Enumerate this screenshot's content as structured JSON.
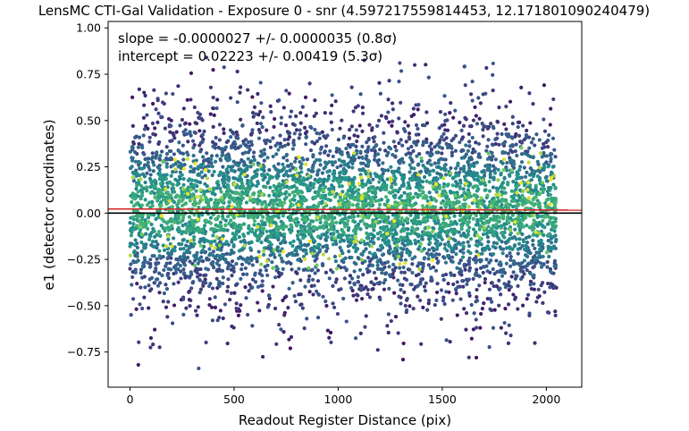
{
  "chart_data": {
    "type": "scatter",
    "title": "LensMC CTI-Gal Validation - Exposure 0 - snr (4.597217559814453, 12.171801090240479)",
    "xlabel": "Readout Register Distance (pix)",
    "ylabel": "e1 (detector coordinates)",
    "xlim": [
      -105,
      2170
    ],
    "ylim": [
      -0.94,
      1.035
    ],
    "xticks": [
      0,
      500,
      1000,
      1500,
      2000
    ],
    "xtick_labels": [
      "0",
      "500",
      "1000",
      "1500",
      "2000"
    ],
    "yticks": [
      -0.75,
      -0.5,
      -0.25,
      0.0,
      0.25,
      0.5,
      0.75,
      1.0
    ],
    "ytick_labels": [
      "−0.75",
      "−0.50",
      "−0.25",
      "0.00",
      "0.25",
      "0.50",
      "0.75",
      "1.00"
    ],
    "grid": false,
    "annotations": [
      {
        "text": "slope = -0.0000027 +/- 0.0000035 (0.8σ)",
        "placement": "top-left"
      },
      {
        "text": "intercept = 0.02223 +/- 0.00419 (5.3σ)",
        "placement": "top-left"
      }
    ],
    "fit_line": {
      "slope": -2.7e-06,
      "intercept": 0.02223,
      "color": "#d62728"
    },
    "zero_line": {
      "y": 0.0,
      "color": "#000000"
    },
    "scatter": {
      "x_range": [
        0,
        2048
      ],
      "y_center": 0.02,
      "y_spread_sd": 0.26,
      "y_extent": [
        -0.86,
        0.88
      ],
      "approx_point_count": 5200,
      "colormap": [
        "#440154",
        "#3b528b",
        "#21918c",
        "#5ec962",
        "#fde725"
      ]
    },
    "colors": {
      "fit": "#d62728",
      "zero": "#000000",
      "axes": "#000000"
    }
  }
}
